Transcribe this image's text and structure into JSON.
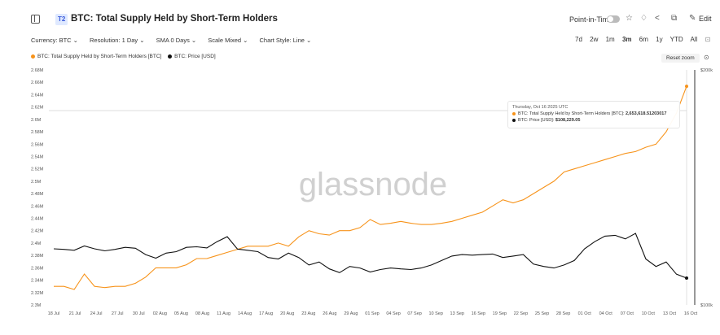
{
  "header": {
    "badge": "T2",
    "title": "BTC: Total Supply Held by Short-Term Holders",
    "point_in_time": "Point-in-Time",
    "edit": "Edit",
    "icons": [
      "panel-icon",
      "star-icon",
      "bell-icon",
      "share-icon",
      "copy-icon",
      "pencil-icon"
    ]
  },
  "options": {
    "currency": "Currency: BTC",
    "resolution": "Resolution: 1 Day",
    "sma": "SMA 0 Days",
    "scale": "Scale Mixed",
    "chart_style": "Chart Style: Line"
  },
  "ranges": [
    "7d",
    "2w",
    "1m",
    "3m",
    "6m",
    "1y",
    "YTD",
    "All"
  ],
  "active_range": "3m",
  "legend": {
    "series1": "BTC: Total Supply Held by Short-Term Holders [BTC]",
    "series2": "BTC: Price [USD]",
    "reset": "Reset zoom"
  },
  "watermark": "glassnode",
  "tooltip": {
    "date": "Thursday, Oct 16 2025 UTC",
    "line1_label": "BTC: Total Supply Held by Short-Term Holders [BTC]:",
    "line1_value": "2,653,618.51203017",
    "line2_label": "BTC: Price [USD]:",
    "line2_value": "$108,229.05"
  },
  "colors": {
    "supply": "#f7931a",
    "price": "#111111"
  },
  "chart_data": {
    "type": "line",
    "x_ticks": [
      "18 Jul",
      "21 Jul",
      "24 Jul",
      "27 Jul",
      "30 Jul",
      "02 Aug",
      "05 Aug",
      "08 Aug",
      "11 Aug",
      "14 Aug",
      "17 Aug",
      "20 Aug",
      "23 Aug",
      "26 Aug",
      "29 Aug",
      "01 Sep",
      "04 Sep",
      "07 Sep",
      "10 Sep",
      "13 Sep",
      "16 Sep",
      "19 Sep",
      "22 Sep",
      "25 Sep",
      "28 Sep",
      "01 Oct",
      "04 Oct",
      "07 Oct",
      "10 Oct",
      "13 Oct",
      "16 Oct"
    ],
    "y_left_ticks": [
      "2.3M",
      "2.32M",
      "2.34M",
      "2.36M",
      "2.38M",
      "2.4M",
      "2.42M",
      "2.44M",
      "2.46M",
      "2.48M",
      "2.5M",
      "2.52M",
      "2.54M",
      "2.56M",
      "2.58M",
      "2.6M",
      "2.62M",
      "2.64M",
      "2.66M",
      "2.68M"
    ],
    "y_left_range": [
      2300000,
      2680000
    ],
    "y_right_ticks": [
      "$100k",
      "$200k"
    ],
    "y_right_scale": "log",
    "y_right_range": [
      100000,
      200000
    ],
    "series": [
      {
        "name": "BTC: Total Supply Held by Short-Term Holders [BTC]",
        "axis": "left",
        "values": [
          2330000,
          2330000,
          2325000,
          2350000,
          2330000,
          2328000,
          2330000,
          2330000,
          2335000,
          2345000,
          2360000,
          2360000,
          2360000,
          2365000,
          2375000,
          2375000,
          2380000,
          2385000,
          2390000,
          2395000,
          2395000,
          2395000,
          2400000,
          2395000,
          2410000,
          2420000,
          2415000,
          2413000,
          2420000,
          2420000,
          2425000,
          2438000,
          2430000,
          2432000,
          2435000,
          2432000,
          2430000,
          2430000,
          2432000,
          2435000,
          2440000,
          2445000,
          2450000,
          2460000,
          2470000,
          2465000,
          2470000,
          2480000,
          2490000,
          2500000,
          2515000,
          2520000,
          2525000,
          2530000,
          2535000,
          2540000,
          2545000,
          2548000,
          2555000,
          2560000,
          2580000,
          2610000,
          2653618
        ]
      },
      {
        "name": "BTC: Price [USD]",
        "axis": "right",
        "values": [
          118000,
          117800,
          117500,
          119000,
          118000,
          117300,
          117800,
          118500,
          118200,
          116000,
          114800,
          116500,
          117000,
          118500,
          118700,
          118300,
          120500,
          122300,
          117900,
          117500,
          117000,
          115000,
          114500,
          116500,
          115000,
          112500,
          113500,
          111200,
          110000,
          112000,
          111500,
          110200,
          111000,
          111500,
          111200,
          111000,
          111500,
          112500,
          114000,
          115500,
          116000,
          115800,
          116000,
          116200,
          115000,
          115500,
          116000,
          112800,
          112000,
          111500,
          112500,
          114000,
          118000,
          120500,
          122500,
          122800,
          121500,
          123500,
          114500,
          112000,
          113500,
          109500,
          108229
        ]
      }
    ],
    "x_start_date": "2025-07-17",
    "legend_position": "top-left",
    "grid": true
  }
}
